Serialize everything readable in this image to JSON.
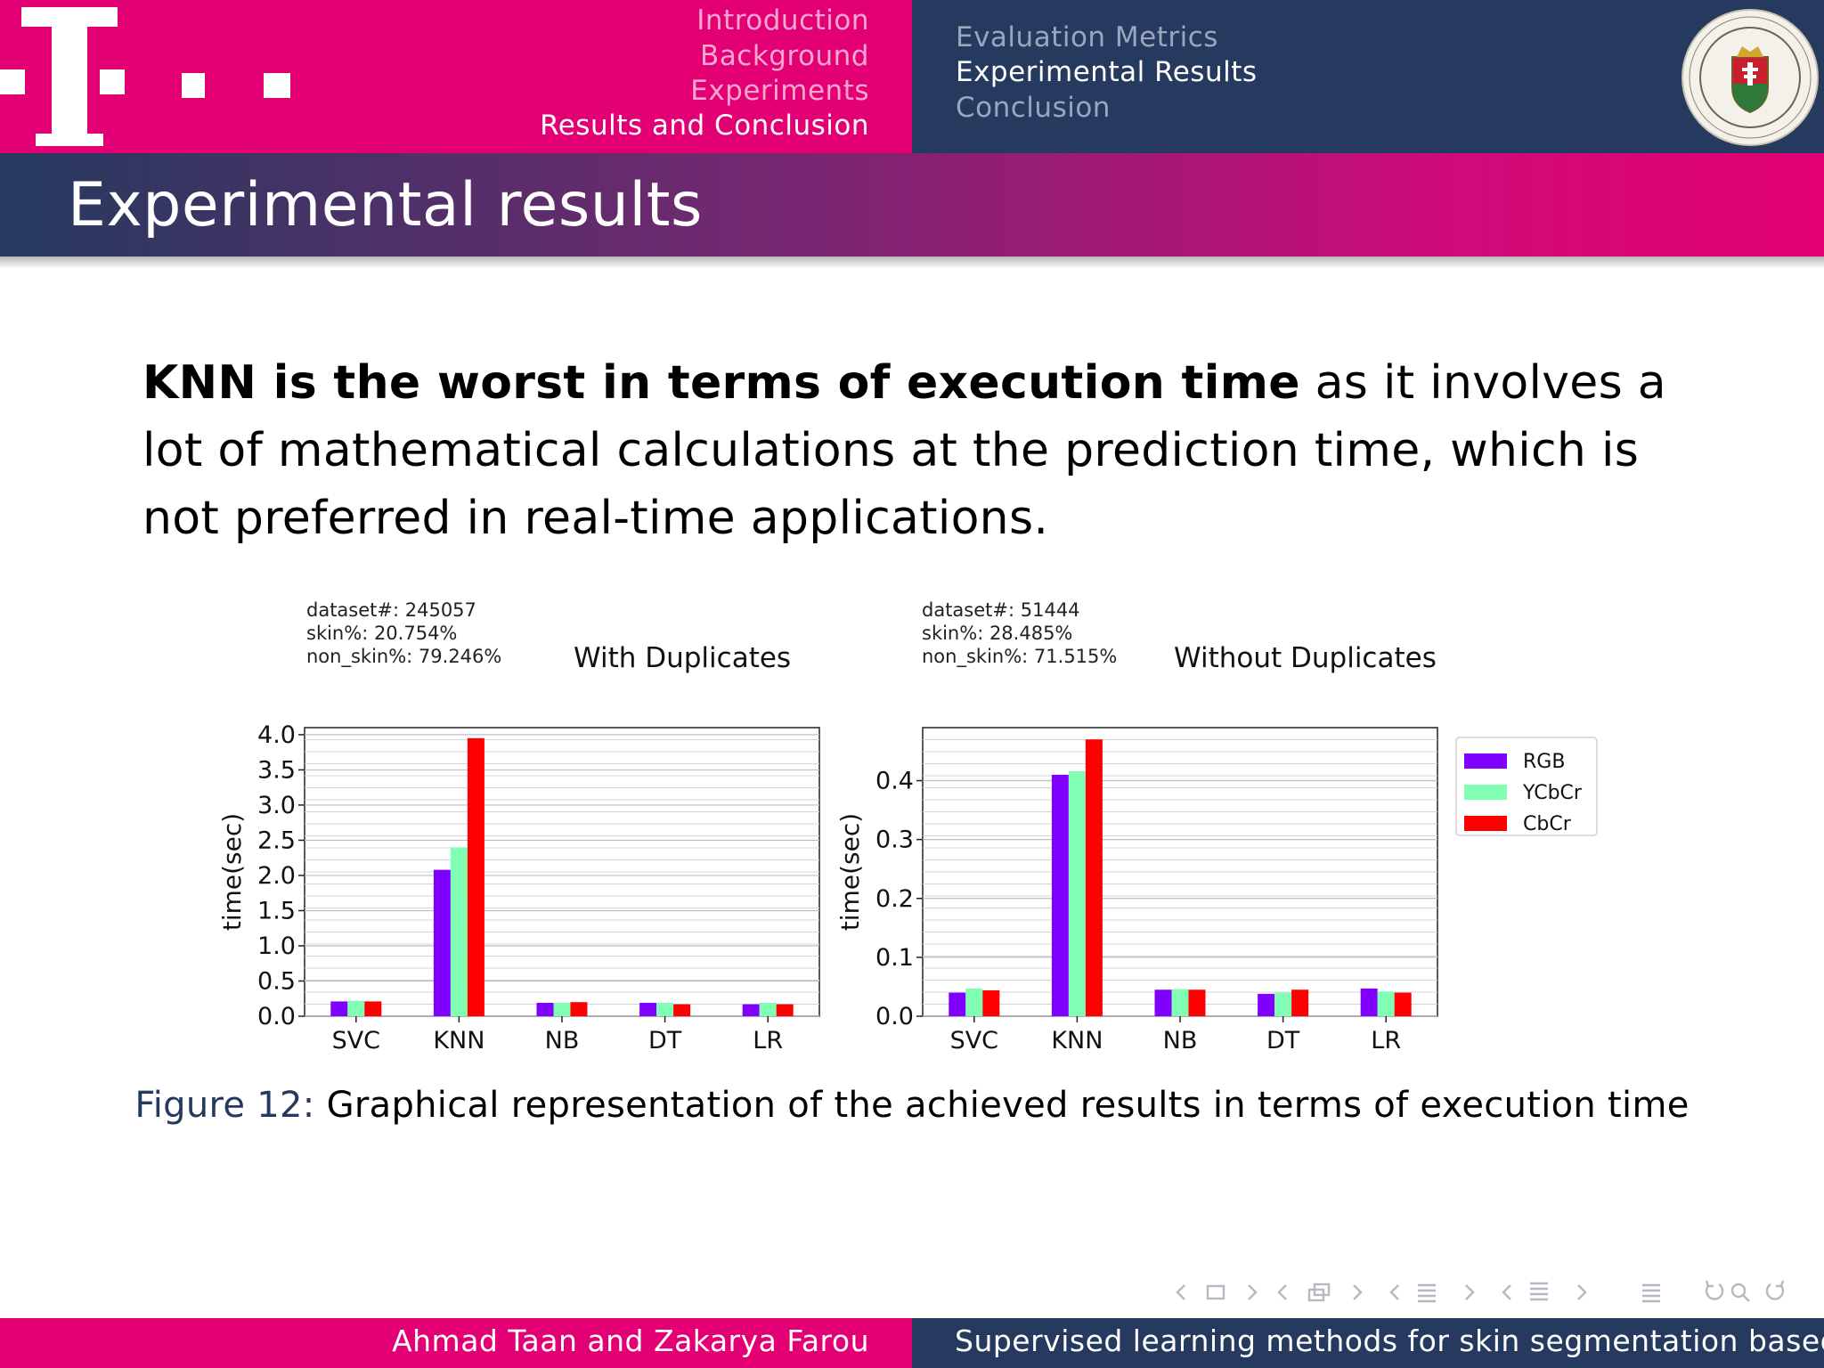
{
  "header": {
    "sections": [
      "Introduction",
      "Background",
      "Experiments",
      "Results and Conclusion"
    ],
    "active_section": 3,
    "subsections": [
      "Evaluation Metrics",
      "Experimental Results",
      "Conclusion"
    ],
    "active_subsection": 1,
    "logo": "telekom-t-logo",
    "seal": "elte-university-seal",
    "brand_color": "#e20074",
    "secondary_color": "#253a5e"
  },
  "slide": {
    "title": "Experimental results",
    "body_bold": "KNN is the worst in terms of execution time",
    "body_rest": " as it involves a lot of mathematical calculations at the prediction time, which is not preferred in real-time applications.",
    "caption_label": "Figure 12:",
    "caption_text": " Graphical representation of the achieved results in terms of execution time"
  },
  "chart_data": [
    {
      "type": "bar",
      "title": "With Duplicates",
      "info": [
        "dataset#: 245057",
        "skin%: 20.754%",
        "non_skin%: 79.246%"
      ],
      "categories": [
        "SVC",
        "KNN",
        "NB",
        "DT",
        "LR"
      ],
      "series": [
        {
          "name": "RGB",
          "color": "#8000ff",
          "values": [
            0.21,
            2.08,
            0.19,
            0.19,
            0.17
          ]
        },
        {
          "name": "YCbCr",
          "color": "#80ffb4",
          "values": [
            0.22,
            2.4,
            0.19,
            0.19,
            0.19
          ]
        },
        {
          "name": "CbCr",
          "color": "#ff0000",
          "values": [
            0.21,
            3.95,
            0.2,
            0.17,
            0.17
          ]
        }
      ],
      "xlabel": "",
      "ylabel": "time(sec)",
      "ylim": [
        0,
        4.1
      ],
      "yticks": [
        "0.0",
        "0.5",
        "1.0",
        "1.5",
        "2.0",
        "2.5",
        "3.0",
        "3.5",
        "4.0"
      ],
      "ytick_values": [
        0,
        0.5,
        1.0,
        1.5,
        2.0,
        2.5,
        3.0,
        3.5,
        4.0
      ],
      "grid": true
    },
    {
      "type": "bar",
      "title": "Without Duplicates",
      "info": [
        "dataset#: 51444",
        "skin%: 28.485%",
        "non_skin%: 71.515%"
      ],
      "categories": [
        "SVC",
        "KNN",
        "NB",
        "DT",
        "LR"
      ],
      "series": [
        {
          "name": "RGB",
          "color": "#8000ff",
          "values": [
            0.04,
            0.41,
            0.045,
            0.038,
            0.047
          ]
        },
        {
          "name": "YCbCr",
          "color": "#80ffb4",
          "values": [
            0.047,
            0.416,
            0.046,
            0.04,
            0.042
          ]
        },
        {
          "name": "CbCr",
          "color": "#ff0000",
          "values": [
            0.044,
            0.47,
            0.045,
            0.045,
            0.04
          ]
        }
      ],
      "xlabel": "",
      "ylabel": "time(sec)",
      "ylim": [
        0,
        0.49
      ],
      "yticks": [
        "0.0",
        "0.1",
        "0.2",
        "0.3",
        "0.4"
      ],
      "ytick_values": [
        0,
        0.1,
        0.2,
        0.3,
        0.4
      ],
      "grid": true,
      "legend": "outside-right"
    }
  ],
  "footer": {
    "authors": "Ahmad Taan and Zakarya Farou",
    "title": "Supervised learning methods for skin segmentation based o"
  }
}
